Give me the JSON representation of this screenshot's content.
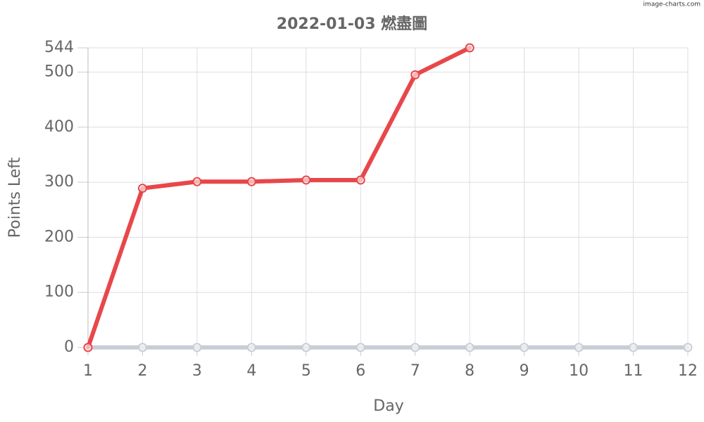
{
  "chart_data": {
    "type": "line",
    "title": "2022-01-03 燃盡圖",
    "watermark": "image-charts.com",
    "x_label": "Day",
    "y_label": "Points Left",
    "x": [
      1,
      2,
      3,
      4,
      5,
      6,
      7,
      8,
      9,
      10,
      11,
      12
    ],
    "series": [
      {
        "color": "#e8474a",
        "values": [
          0,
          289,
          301,
          301,
          304,
          304,
          495,
          544,
          null,
          null,
          null,
          null
        ]
      },
      {
        "color": "#c9ced6",
        "values": [
          0,
          0,
          0,
          0,
          0,
          0,
          0,
          0,
          0,
          0,
          0,
          0
        ]
      }
    ],
    "xlim": [
      1,
      12
    ],
    "xticks": [
      1,
      2,
      3,
      4,
      5,
      6,
      7,
      8,
      9,
      10,
      11,
      12
    ],
    "ylim": [
      0,
      544
    ],
    "yticks": [
      0,
      100,
      200,
      300,
      400,
      500,
      544
    ],
    "grid": true
  }
}
